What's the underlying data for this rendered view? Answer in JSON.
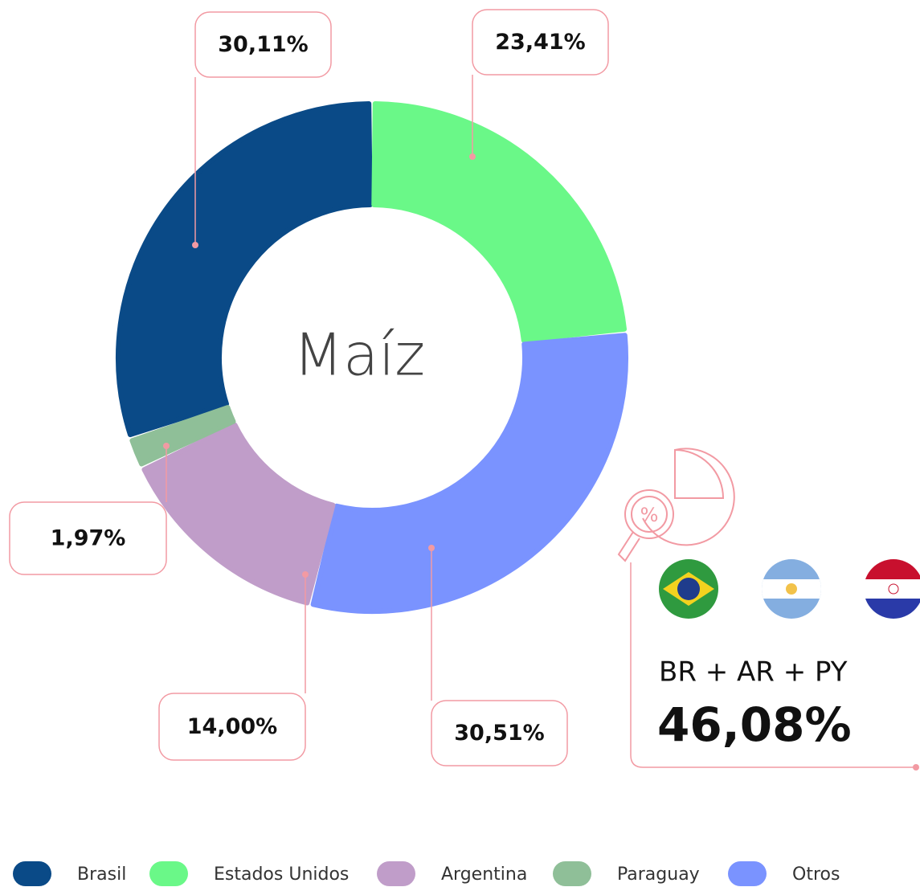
{
  "chart_data": {
    "type": "donut",
    "center_label": "Maíz",
    "categories": [
      "Brasil",
      "Estados Unidos",
      "Argentina",
      "Paraguay",
      "Otros"
    ],
    "values": [
      30.11,
      23.41,
      14.0,
      1.97,
      30.51
    ],
    "value_labels": [
      "30,11%",
      "23,41%",
      "14,00%",
      "1,97%",
      "30,51%"
    ],
    "colors": [
      "#0a4a87",
      "#6af888",
      "#c09dc9",
      "#8fbf98",
      "#7a93ff"
    ],
    "legend": "bottom",
    "highlight": {
      "label": "BR + AR + PY",
      "value_label": "46,08%"
    }
  }
}
